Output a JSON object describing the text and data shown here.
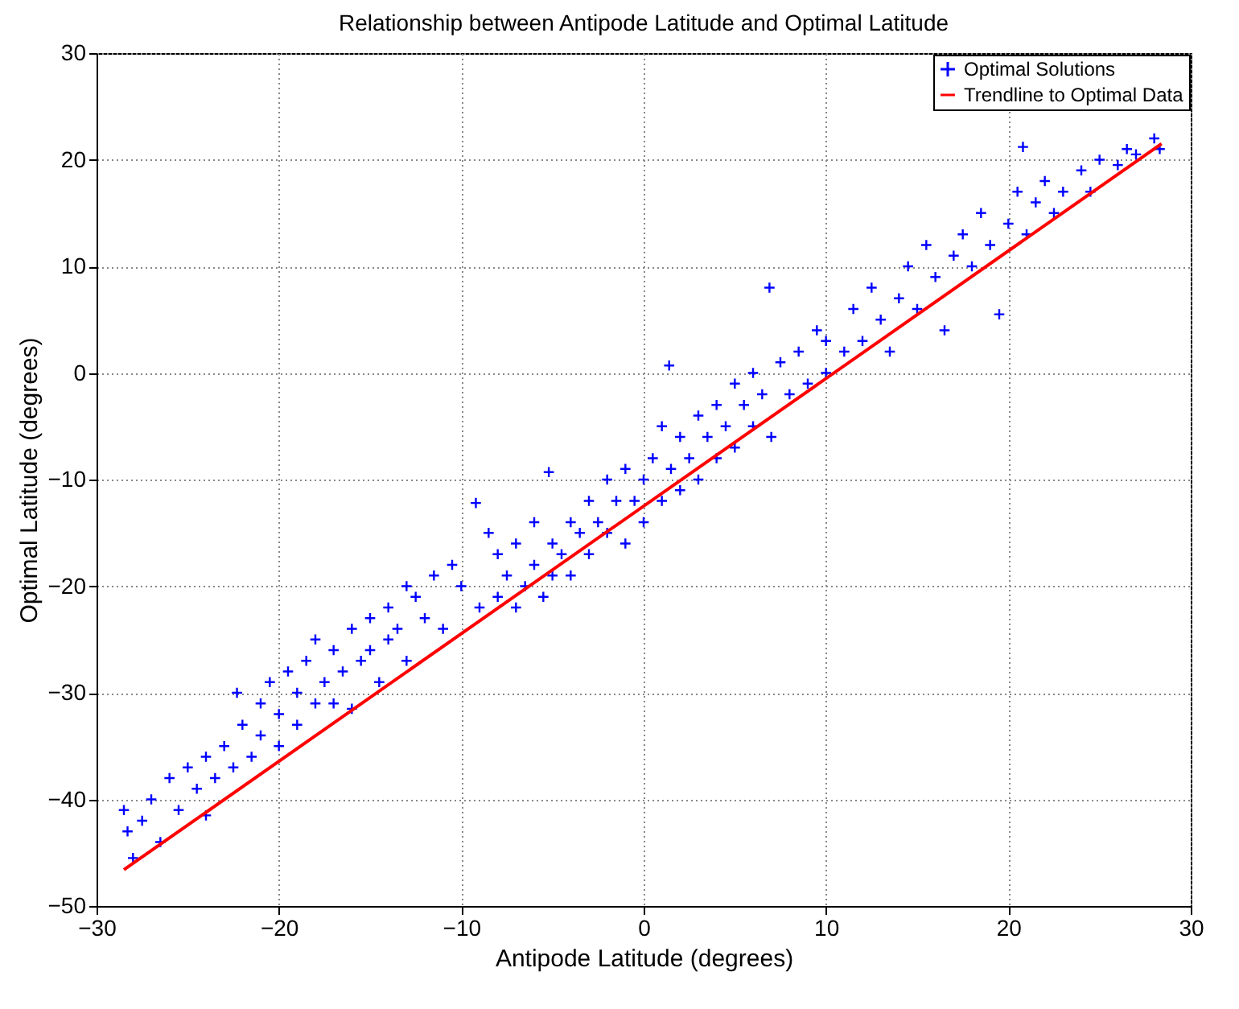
{
  "chart_data": {
    "type": "scatter",
    "title": "Relationship between Antipode Latitude and Optimal Latitude",
    "xlabel": "Antipode Latitude (degrees)",
    "ylabel": "Optimal Latitude (degrees)",
    "xlim": [
      -30,
      30
    ],
    "ylim": [
      -50,
      30
    ],
    "xticks": [
      -30,
      -20,
      -10,
      0,
      10,
      20,
      30
    ],
    "yticks": [
      -50,
      -40,
      -30,
      -20,
      -10,
      0,
      10,
      20,
      30
    ],
    "grid": true,
    "legend": "top right",
    "series": [
      {
        "name": "Optimal Solutions",
        "color": "#0000ff",
        "marker": "cross",
        "x": [
          -28.5,
          -28.3,
          -28,
          -27.5,
          -27,
          -26.5,
          -26,
          -25.5,
          -25,
          -24.5,
          -24,
          -24,
          -23.5,
          -23,
          -22.5,
          -22.3,
          -22,
          -21.5,
          -21,
          -21,
          -20.5,
          -20,
          -20,
          -19.5,
          -19,
          -19,
          -18.5,
          -18,
          -18,
          -17.5,
          -17,
          -17,
          -16.5,
          -16,
          -16,
          -15.5,
          -15,
          -15,
          -14.5,
          -14,
          -14,
          -13.5,
          -13,
          -13,
          -12.5,
          -12,
          -11.5,
          -11,
          -10.5,
          -10,
          -9.2,
          -9,
          -8.5,
          -8,
          -8,
          -7.5,
          -7,
          -7,
          -6.5,
          -6,
          -6,
          -5.5,
          -5.2,
          -5,
          -5,
          -4.5,
          -4,
          -4,
          -3.5,
          -3,
          -3,
          -2.5,
          -2,
          -2,
          -1.5,
          -1,
          -1,
          -0.5,
          0,
          0,
          0.5,
          1,
          1,
          1.4,
          1.5,
          2,
          2,
          2.5,
          3,
          3,
          3.5,
          4,
          4,
          4.5,
          5,
          5,
          5.5,
          6,
          6,
          6.5,
          6.9,
          7,
          7.5,
          8,
          8.5,
          9,
          9.5,
          10,
          10,
          11,
          11.5,
          12,
          12.5,
          13,
          13.5,
          14,
          14.5,
          15,
          15.5,
          16,
          16.5,
          17,
          17.5,
          18,
          18.5,
          19,
          19.5,
          20,
          20.5,
          20.8,
          21,
          21.5,
          22,
          22.5,
          23,
          24,
          24.5,
          25,
          26,
          26.5,
          27,
          28,
          28.3
        ],
        "values": [
          -41,
          -43,
          -45.5,
          -42,
          -40,
          -44,
          -38,
          -41,
          -37,
          -39,
          -41.5,
          -36,
          -38,
          -35,
          -37,
          -30,
          -33,
          -36,
          -31,
          -34,
          -29,
          -32,
          -35,
          -28,
          -30,
          -33,
          -27,
          -31,
          -25,
          -29,
          -26,
          -31,
          -28,
          -24,
          -31.5,
          -27,
          -23,
          -26,
          -29,
          -22,
          -25,
          -24,
          -20,
          -27,
          -21,
          -23,
          -19,
          -24,
          -18,
          -20,
          -12.2,
          -22,
          -15,
          -21,
          -17,
          -19,
          -22,
          -16,
          -20,
          -18,
          -14,
          -21,
          -9.3,
          -16,
          -19,
          -17,
          -14,
          -19,
          -15,
          -12,
          -17,
          -14,
          -10,
          -15,
          -12,
          -9,
          -16,
          -12,
          -10,
          -14,
          -8,
          -12,
          -5,
          0.7,
          -9,
          -6,
          -11,
          -8,
          -4,
          -10,
          -6,
          -3,
          -8,
          -5,
          -1,
          -7,
          -3,
          -5,
          0,
          -2,
          8,
          -6,
          1,
          -2,
          2,
          -1,
          4,
          0,
          3,
          2,
          6,
          3,
          8,
          5,
          2,
          7,
          10,
          6,
          12,
          9,
          4,
          11,
          13,
          10,
          15,
          12,
          5.5,
          14,
          17,
          21.2,
          13,
          16,
          18,
          15,
          17,
          19,
          17,
          20,
          19.5,
          21,
          20.5,
          22,
          21
        ]
      },
      {
        "name": "Trendline to Optimal Data",
        "color": "#ff0000",
        "type": "line",
        "line_style": "solid",
        "x": [
          -28.5,
          28.4
        ],
        "values": [
          -46.6,
          21.5
        ]
      }
    ]
  }
}
